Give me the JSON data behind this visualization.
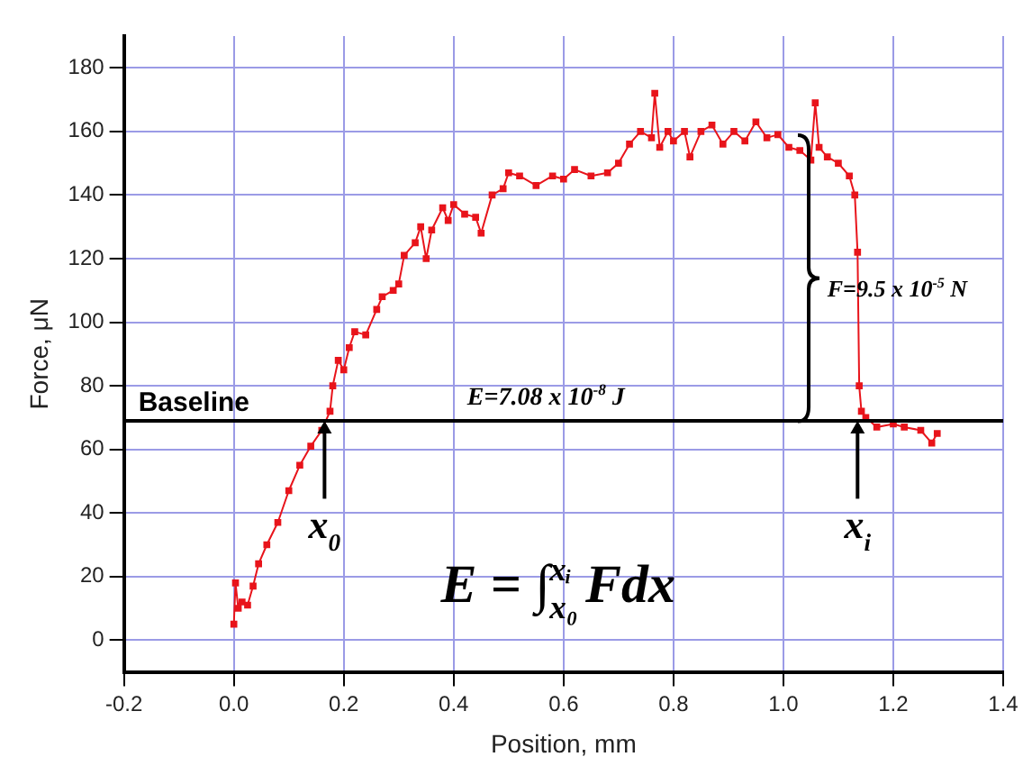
{
  "chart_data": {
    "type": "line",
    "xlabel": "Position, mm",
    "ylabel": "Force, μN",
    "xlim": [
      -0.2,
      1.4
    ],
    "ylim": [
      -10,
      190
    ],
    "xticks": [
      {
        "value": -0.2,
        "label": "-0.2"
      },
      {
        "value": 0,
        "label": "0.0"
      },
      {
        "value": 0.2,
        "label": "0.2"
      },
      {
        "value": 0.4,
        "label": "0.4"
      },
      {
        "value": 0.6,
        "label": "0.6"
      },
      {
        "value": 0.8,
        "label": "0.8"
      },
      {
        "value": 1,
        "label": "1.0"
      },
      {
        "value": 1.2,
        "label": "1.2"
      },
      {
        "value": 1.4,
        "label": "1.4"
      }
    ],
    "yticks": [
      0,
      20,
      40,
      60,
      80,
      100,
      120,
      140,
      160,
      180
    ],
    "grid": true,
    "legend": false,
    "marker": "square",
    "line_style": "solid",
    "series": [
      {
        "color": "#e8141b",
        "x": [
          0,
          0.003,
          0.008,
          0.015,
          0.025,
          0.035,
          0.045,
          0.06,
          0.08,
          0.1,
          0.12,
          0.14,
          0.16,
          0.175,
          0.18,
          0.19,
          0.2,
          0.21,
          0.22,
          0.24,
          0.26,
          0.27,
          0.29,
          0.3,
          0.31,
          0.33,
          0.34,
          0.35,
          0.36,
          0.38,
          0.39,
          0.4,
          0.42,
          0.44,
          0.45,
          0.47,
          0.49,
          0.5,
          0.52,
          0.55,
          0.58,
          0.6,
          0.62,
          0.65,
          0.68,
          0.7,
          0.72,
          0.74,
          0.76,
          0.766,
          0.775,
          0.79,
          0.8,
          0.82,
          0.83,
          0.85,
          0.87,
          0.89,
          0.91,
          0.93,
          0.95,
          0.97,
          0.99,
          1.01,
          1.03,
          1.05,
          1.058,
          1.065,
          1.08,
          1.1,
          1.12,
          1.13,
          1.135,
          1.138,
          1.142,
          1.15,
          1.17,
          1.2,
          1.22,
          1.25,
          1.27,
          1.28
        ],
        "values": [
          5,
          18,
          10,
          12,
          11,
          17,
          24,
          30,
          37,
          47,
          55,
          61,
          66,
          72,
          80,
          88,
          85,
          92,
          97,
          96,
          104,
          108,
          110,
          112,
          121,
          125,
          130,
          120,
          129,
          136,
          132,
          137,
          134,
          133,
          128,
          140,
          142,
          147,
          146,
          143,
          146,
          145,
          148,
          146,
          147,
          150,
          156,
          160,
          158,
          172,
          155,
          160,
          157,
          160,
          152,
          160,
          162,
          156,
          160,
          157,
          163,
          158,
          159,
          155,
          154,
          151,
          169,
          155,
          152,
          150,
          146,
          140,
          122,
          80,
          72,
          70,
          67,
          68,
          67,
          66,
          62,
          65
        ]
      }
    ],
    "ref_lines": [
      {
        "axis": "y",
        "value": 69,
        "label": "Baseline",
        "color": "#000000"
      }
    ],
    "annotations": [
      "E=7.08 x 10$^{-8}$ J",
      "F=9.5 x 10$^{-5}$ N",
      {
        "text": "x$_{0}$",
        "x": 0.165,
        "y": 69
      },
      {
        "text": "x$_{i}$",
        "x": 1.135,
        "y": 69
      },
      "E = ∫$_{x₀}$$^{xᵢ}$ Fdx"
    ]
  }
}
